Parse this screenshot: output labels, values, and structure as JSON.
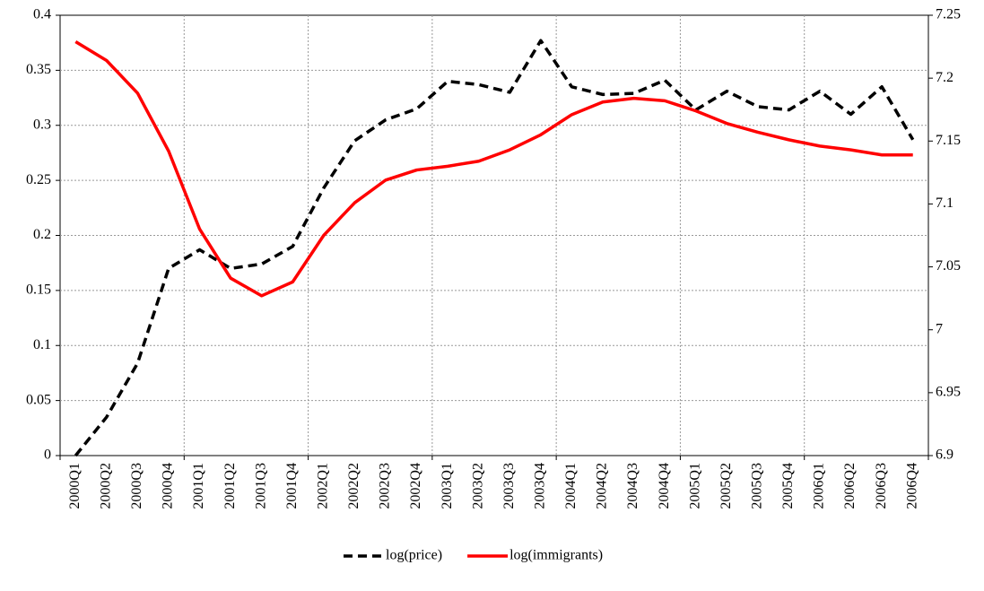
{
  "chart_data": {
    "type": "line",
    "categories": [
      "2000Q1",
      "2000Q2",
      "2000Q3",
      "2000Q4",
      "2001Q1",
      "2001Q2",
      "2001Q3",
      "2001Q4",
      "2002Q1",
      "2002Q2",
      "2002Q3",
      "2002Q4",
      "2003Q1",
      "2003Q2",
      "2003Q3",
      "2003Q4",
      "2004Q1",
      "2004Q2",
      "2004Q3",
      "2004Q4",
      "2005Q1",
      "2005Q2",
      "2005Q3",
      "2005Q4",
      "2006Q1",
      "2006Q2",
      "2006Q3",
      "2006Q4"
    ],
    "series": [
      {
        "name": "log(price)",
        "color": "#000000",
        "dash": true,
        "values": [
          0,
          0.035,
          0.084,
          0.17,
          0.187,
          0.17,
          0.174,
          0.19,
          0.243,
          0.286,
          0.305,
          0.315,
          0.34,
          0.337,
          0.33,
          0.377,
          0.335,
          0.328,
          0.329,
          0.341,
          0.314,
          0.331,
          0.317,
          0.314,
          0.331,
          0.31,
          0.335,
          0.287
        ]
      },
      {
        "name": "log(immigrants)",
        "color": "#ff0000",
        "axis": "y2",
        "values": [
          7.229,
          7.214,
          7.188,
          7.142,
          7.08,
          7.041,
          7.027,
          7.038,
          7.075,
          7.101,
          7.119,
          7.127,
          7.13,
          7.134,
          7.143,
          7.155,
          7.171,
          7.181,
          7.184,
          7.182,
          7.174,
          7.164,
          7.157,
          7.151,
          7.146,
          7.143,
          7.139,
          7.139
        ]
      }
    ],
    "ylim": [
      0,
      0.4
    ],
    "yticks": [
      0,
      0.05,
      0.1,
      0.15,
      0.2,
      0.25,
      0.3,
      0.35,
      0.4
    ],
    "y2lim": [
      6.9,
      7.25
    ],
    "y2ticks": [
      6.9,
      6.95,
      7,
      7.05,
      7.1,
      7.15,
      7.2,
      7.25
    ],
    "grid": true,
    "legend": "bottom"
  }
}
